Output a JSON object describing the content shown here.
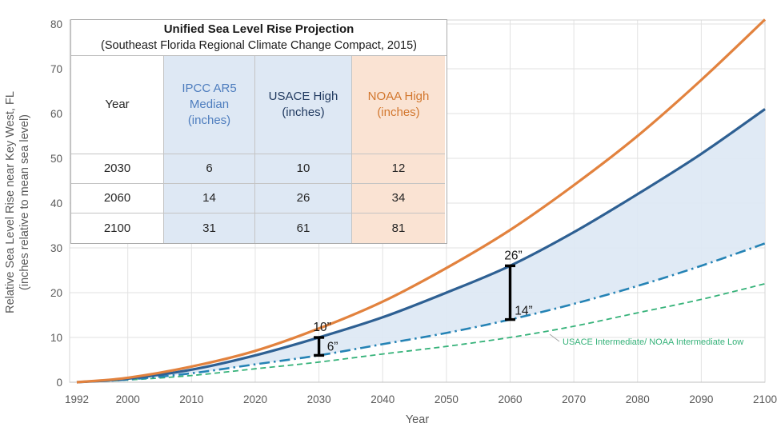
{
  "table": {
    "title": "Unified Sea Level Rise Projection",
    "subtitle": "(Southeast Florida Regional Climate Change Compact, 2015)",
    "headers": [
      "Year",
      "IPCC AR5\nMedian\n(inches)",
      "USACE High\n(inches)",
      "NOAA High\n(inches)"
    ],
    "rows": [
      [
        "2030",
        "6",
        "10",
        "12"
      ],
      [
        "2060",
        "14",
        "26",
        "34"
      ],
      [
        "2100",
        "31",
        "61",
        "81"
      ]
    ],
    "colors": {
      "blue_column_bg": "#DEE8F4",
      "orange_column_bg": "#FAE3D3",
      "ipcc_header_text": "#4E7DBE",
      "usace_header_text": "#20395F",
      "noaa_header_text": "#D2772E"
    }
  },
  "chart_data": {
    "type": "line",
    "title": "Unified Sea Level Rise Projection",
    "xlabel": "Year",
    "ylabel_line1": "Relative Sea Level Rise near Key West, FL",
    "ylabel_line2": "(inches relative to mean sea level)",
    "xlim": [
      1992,
      2100
    ],
    "ylim": [
      0,
      80
    ],
    "grid": true,
    "xticks": [
      1992,
      2000,
      2010,
      2020,
      2030,
      2040,
      2050,
      2060,
      2070,
      2080,
      2090,
      2100
    ],
    "yticks": [
      0,
      10,
      20,
      30,
      40,
      50,
      60,
      70,
      80
    ],
    "x": [
      1992,
      2000,
      2010,
      2020,
      2030,
      2040,
      2050,
      2060,
      2070,
      2080,
      2090,
      2100
    ],
    "series": [
      {
        "name": "NOAA High",
        "style": "solid",
        "width": 3.2,
        "color": "#E2823E",
        "values": [
          0,
          1,
          3.5,
          7,
          12,
          18,
          25.5,
          34,
          44,
          55,
          67.5,
          81
        ]
      },
      {
        "name": "USACE High",
        "style": "solid",
        "width": 3.2,
        "color": "#2E6093",
        "values": [
          0,
          0.8,
          2.8,
          6,
          10,
          14.5,
          20,
          26,
          33.5,
          42,
          51,
          61
        ]
      },
      {
        "name": "IPCC AR5 Median",
        "style": "dashdot",
        "width": 2.6,
        "color": "#2583B5",
        "values": [
          0,
          0.6,
          2,
          4,
          6,
          8.5,
          11,
          14,
          17.5,
          21.5,
          26,
          31
        ]
      },
      {
        "name": "USACE Intermediate/ NOAA Intermediate Low",
        "style": "dashed",
        "width": 1.8,
        "color": "#35B279",
        "values": [
          0,
          0.5,
          1.5,
          3,
          4.5,
          6.3,
          8,
          10,
          12.5,
          15.5,
          18.5,
          22
        ]
      }
    ],
    "band": {
      "upper": "USACE High",
      "lower": "IPCC AR5 Median",
      "color": "#DDE8F4"
    },
    "annotations": [
      {
        "year": 2030,
        "from": 6,
        "to": 10,
        "top_label": "10”",
        "bottom_label": "6”"
      },
      {
        "year": 2060,
        "from": 14,
        "to": 26,
        "top_label": "26”",
        "bottom_label": "14”"
      }
    ],
    "series_label": {
      "text": "USACE Intermediate/ NOAA Intermediate Low",
      "color": "#35B279"
    },
    "legend_position": "none"
  }
}
